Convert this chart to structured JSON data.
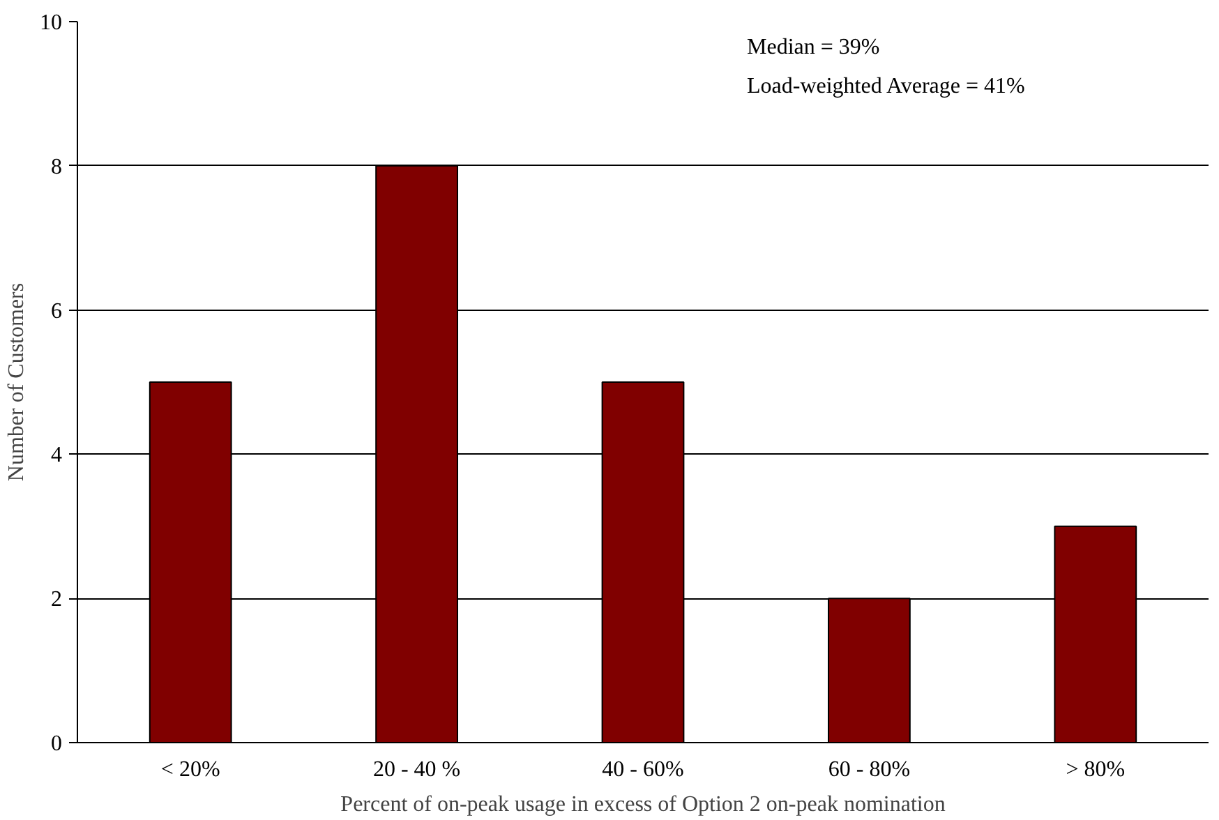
{
  "chart_data": {
    "type": "bar",
    "xlabel": "Percent of on-peak usage in excess of Option 2 on-peak nomination",
    "ylabel": "Number of Customers",
    "categories": [
      "< 20%",
      "20 - 40 %",
      "40 - 60%",
      "60 - 80%",
      "> 80%"
    ],
    "values": [
      5,
      8,
      5,
      2,
      3
    ],
    "color": "#800000",
    "ylim": [
      0,
      10
    ],
    "yticks": [
      0,
      2,
      4,
      6,
      8,
      10
    ],
    "grid": "y",
    "annotations": [
      "Median = 39%",
      "Load-weighted Average = 41%"
    ]
  }
}
